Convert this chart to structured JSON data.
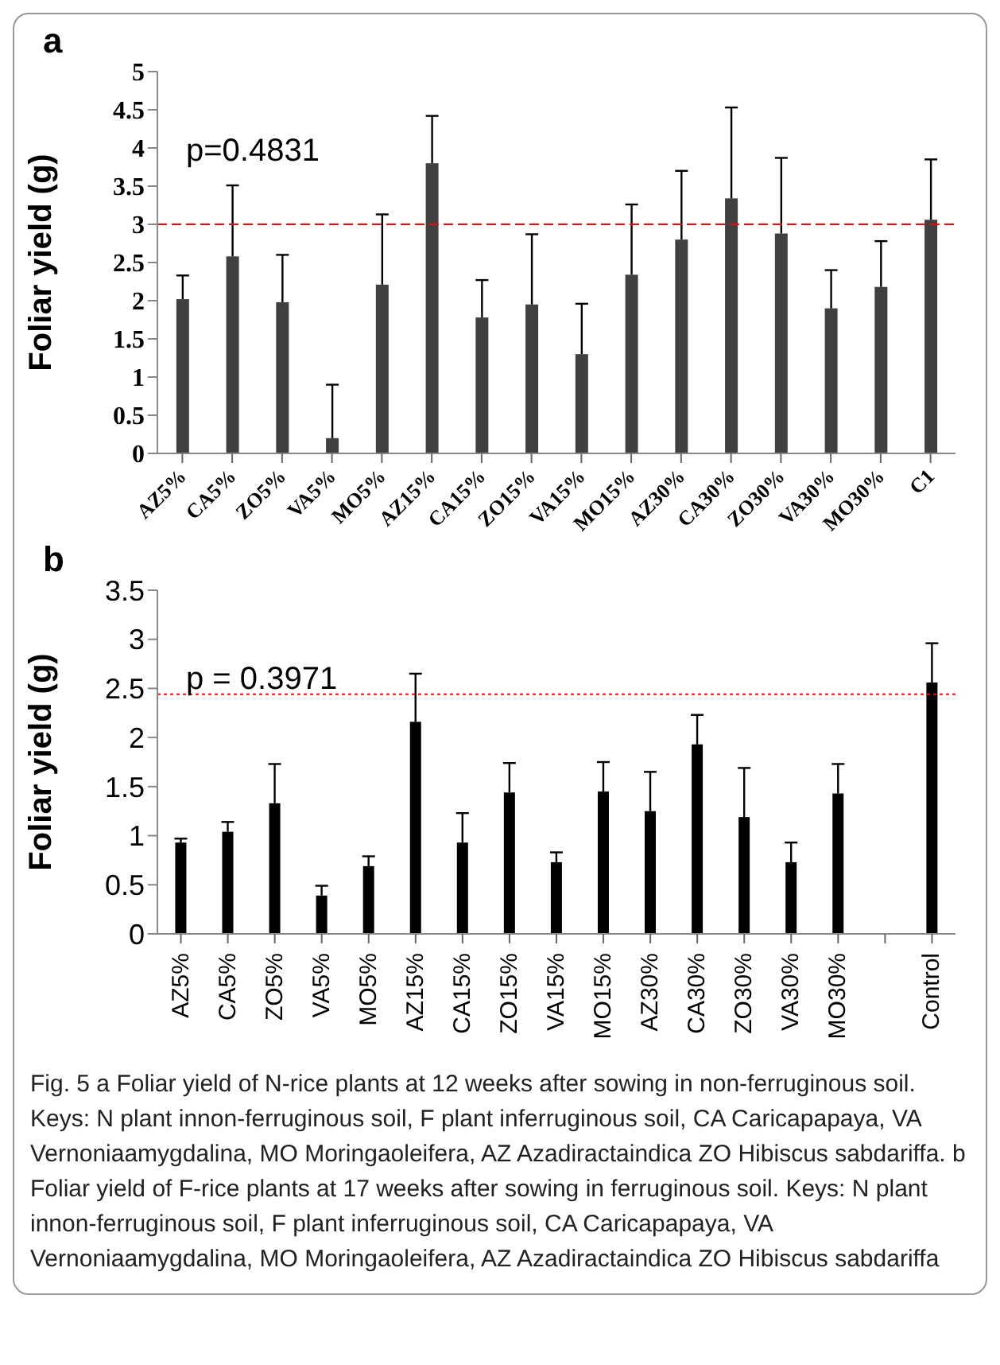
{
  "chart_data": [
    {
      "type": "bar",
      "title": "a",
      "ylabel": "Foliar yield (g)",
      "categories": [
        "AZ5%",
        "CA5%",
        "ZO5%",
        "VA5%",
        "MO5%",
        "AZ15%",
        "CA15%",
        "ZO15%",
        "VA15%",
        "MO15%",
        "AZ30%",
        "CA30%",
        "ZO30%",
        "VA30%",
        "MO30%",
        "C1"
      ],
      "values": [
        2.02,
        2.58,
        1.98,
        0.2,
        2.21,
        3.8,
        1.78,
        1.95,
        1.3,
        2.34,
        2.8,
        3.34,
        2.88,
        1.9,
        2.18,
        3.06
      ],
      "errors": [
        [
          2.02,
          2.33
        ],
        [
          2.58,
          3.51
        ],
        [
          1.98,
          2.6
        ],
        [
          0.2,
          0.9
        ],
        [
          2.21,
          3.13
        ],
        [
          3.8,
          4.42
        ],
        [
          1.78,
          2.27
        ],
        [
          1.95,
          2.87
        ],
        [
          1.3,
          1.96
        ],
        [
          2.34,
          3.26
        ],
        [
          2.8,
          3.7
        ],
        [
          3.34,
          4.53
        ],
        [
          2.88,
          3.87
        ],
        [
          1.9,
          2.4
        ],
        [
          2.18,
          2.78
        ],
        [
          3.06,
          3.85
        ]
      ],
      "color": "#404040",
      "ylim": [
        0,
        5
      ],
      "yticks": [
        0,
        0.5,
        1,
        1.5,
        2,
        2.5,
        3,
        3.5,
        4,
        4.5,
        5
      ],
      "ref_lines": [
        {
          "axis": "y",
          "value": 3,
          "color": "#ff0000",
          "line_style": "dashed"
        }
      ],
      "annotations": [
        "p=0.4831"
      ]
    },
    {
      "type": "bar",
      "title": "b",
      "ylabel": "Foliar yield (g)",
      "categories": [
        "AZ5%",
        "CA5%",
        "ZO5%",
        "VA5%",
        "MO5%",
        "AZ15%",
        "CA15%",
        "ZO15%",
        "VA15%",
        "MO15%",
        "AZ30%",
        "CA30%",
        "ZO30%",
        "VA30%",
        "MO30%",
        null,
        "Control"
      ],
      "values": [
        0.93,
        1.04,
        1.33,
        0.39,
        0.69,
        2.16,
        0.93,
        1.44,
        0.73,
        1.45,
        1.25,
        1.93,
        1.19,
        0.73,
        1.43,
        null,
        2.56
      ],
      "errors": [
        [
          0.93,
          0.97
        ],
        [
          1.04,
          1.14
        ],
        [
          1.33,
          1.73
        ],
        [
          0.39,
          0.49
        ],
        [
          0.69,
          0.79
        ],
        [
          2.16,
          2.65
        ],
        [
          0.93,
          1.23
        ],
        [
          1.44,
          1.74
        ],
        [
          0.73,
          0.83
        ],
        [
          1.45,
          1.75
        ],
        [
          1.25,
          1.65
        ],
        [
          1.93,
          2.23
        ],
        [
          1.19,
          1.69
        ],
        [
          0.73,
          0.93
        ],
        [
          1.43,
          1.73
        ],
        null,
        [
          2.56,
          2.96
        ]
      ],
      "color": "#000000",
      "ylim": [
        0,
        3.5
      ],
      "yticks": [
        0,
        0.5,
        1,
        1.5,
        2,
        2.5,
        3,
        3.5
      ],
      "ref_lines": [
        {
          "axis": "y",
          "value": 2.44,
          "color": "#ff0000",
          "line_style": "dotted"
        }
      ],
      "annotations": [
        "p = 0.3971",
        "Fig. 5 a Foliar yield of N-rice plants at 12 weeks after sowing in non-ferruginous soil. Keys: N plant innon-ferruginous soil, F plant inferruginous soil, CA Caricapapaya, VA Vernoniaamygdalina, MO Moringaoleifera, AZ Azadiractaindica ZO Hibiscus sabdariffa. b Foliar yield of F-rice plants at 17 weeks after sowing in ferruginous soil. Keys: N plant innon-ferruginous soil, F plant inferruginous soil, CA Caricapapaya, VA Vernoniaamygdalina, MO Moringaoleifera, AZ Azadiractaindica ZO Hibiscus sabdariffa"
      ]
    }
  ]
}
